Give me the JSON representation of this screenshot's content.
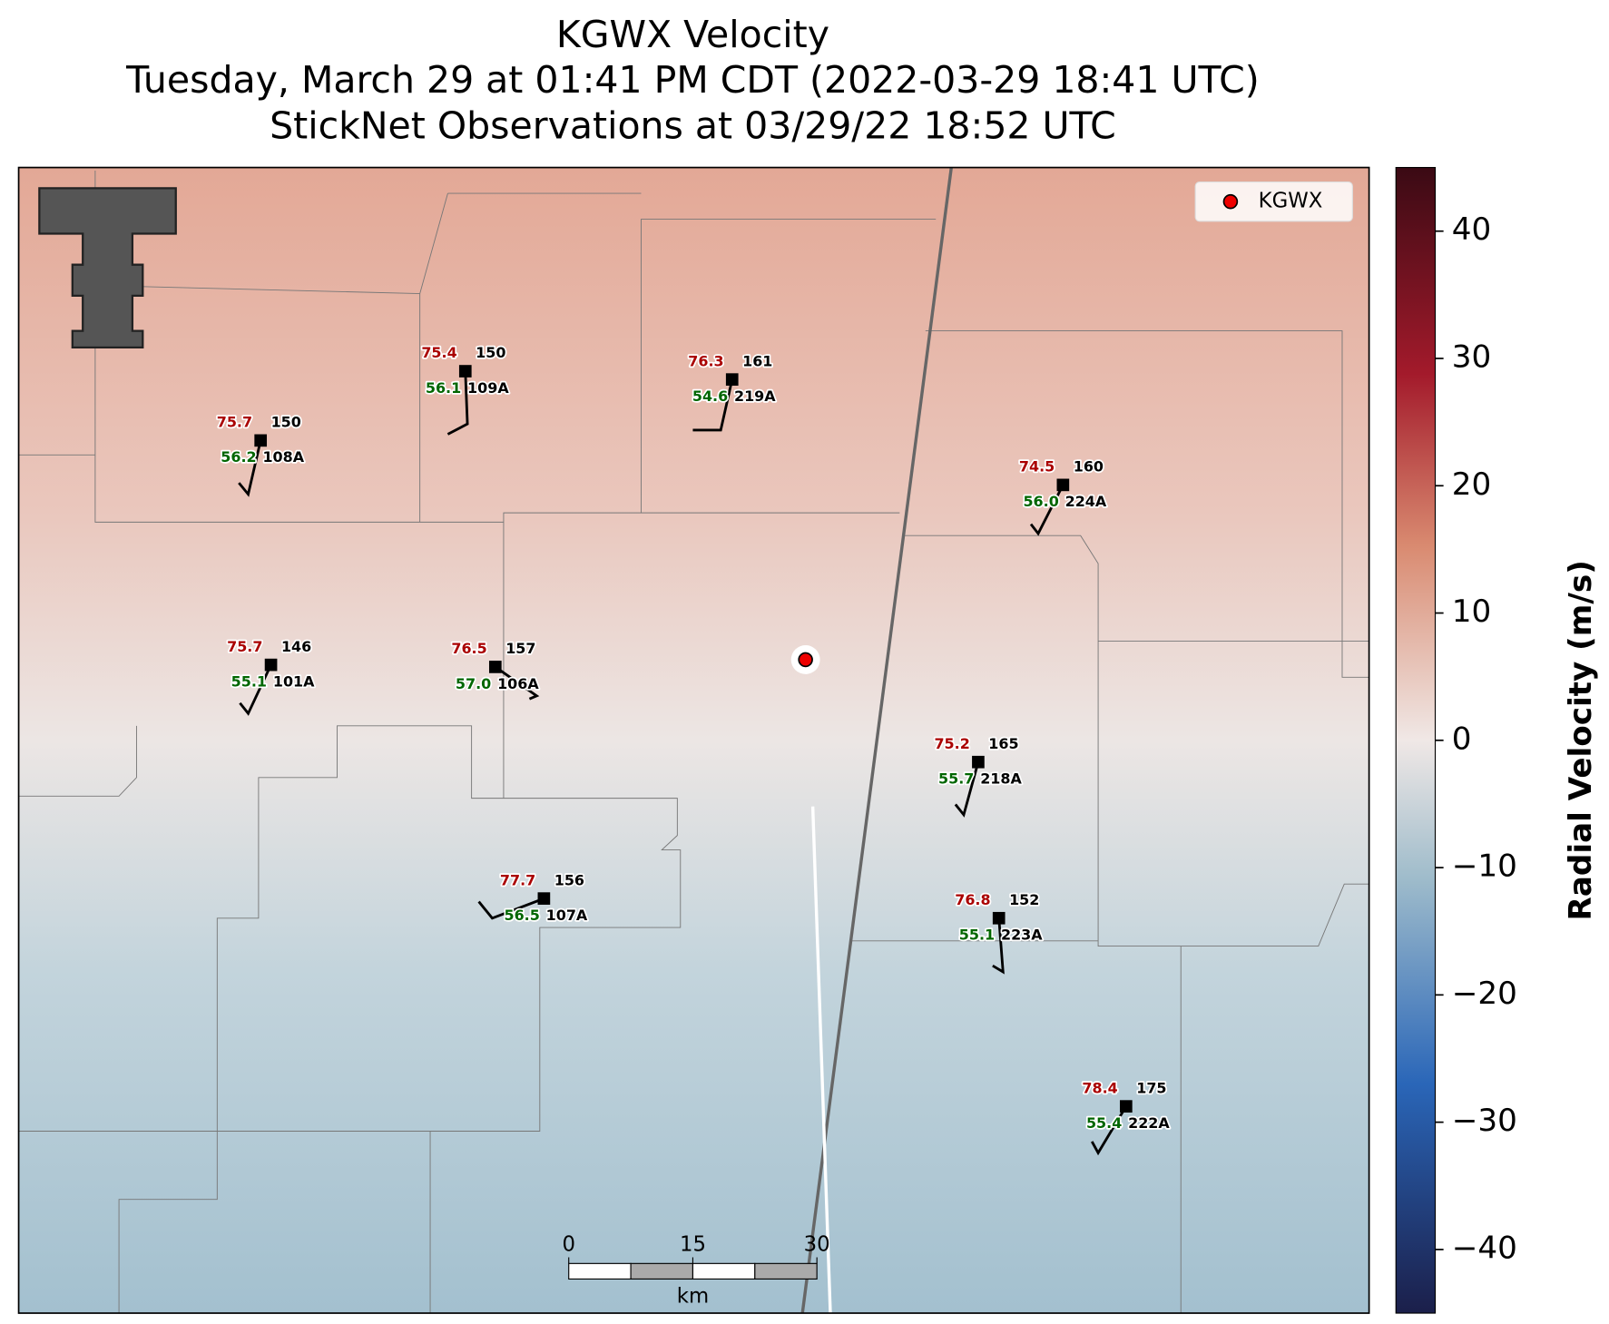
{
  "title_lines": [
    "KGWX Velocity",
    "Tuesday, March 29 at 01:41 PM CDT (2022-03-29 18:41 UTC)",
    "StickNet Observations at 03/29/22 18:52 UTC"
  ],
  "legend": {
    "label": "KGWX"
  },
  "colorbar": {
    "label": "Radial Velocity (m/s)",
    "lim": [
      -45,
      45
    ],
    "ticks": [
      {
        "value": -40,
        "label": "−40"
      },
      {
        "value": -30,
        "label": "−30"
      },
      {
        "value": -20,
        "label": "−20"
      },
      {
        "value": -10,
        "label": "−10"
      },
      0,
      10,
      20,
      30,
      40
    ]
  },
  "stations": [
    {
      "temperature": "75.7",
      "pressure": "150",
      "dewpoint": "56.2",
      "id": "108A"
    },
    {
      "temperature": "75.4",
      "pressure": "150",
      "dewpoint": "56.1",
      "id": "109A"
    },
    {
      "temperature": "76.3",
      "pressure": "161",
      "dewpoint": "54.6",
      "id": "219A"
    },
    {
      "temperature": "74.5",
      "pressure": "160",
      "dewpoint": "56.0",
      "id": "224A"
    },
    {
      "temperature": "75.7",
      "pressure": "146",
      "dewpoint": "55.1",
      "id": "101A"
    },
    {
      "temperature": "76.5",
      "pressure": "157",
      "dewpoint": "57.0",
      "id": "106A"
    },
    {
      "temperature": "75.2",
      "pressure": "165",
      "dewpoint": "55.7",
      "id": "218A"
    },
    {
      "temperature": "77.7",
      "pressure": "156",
      "dewpoint": "56.5",
      "id": "107A"
    },
    {
      "temperature": "76.8",
      "pressure": "152",
      "dewpoint": "55.1",
      "id": "223A"
    },
    {
      "temperature": "78.4",
      "pressure": "175",
      "dewpoint": "55.4",
      "id": "222A"
    }
  ],
  "scale_bar": {
    "ticks": [
      0,
      15,
      30
    ],
    "unit": "km"
  }
}
